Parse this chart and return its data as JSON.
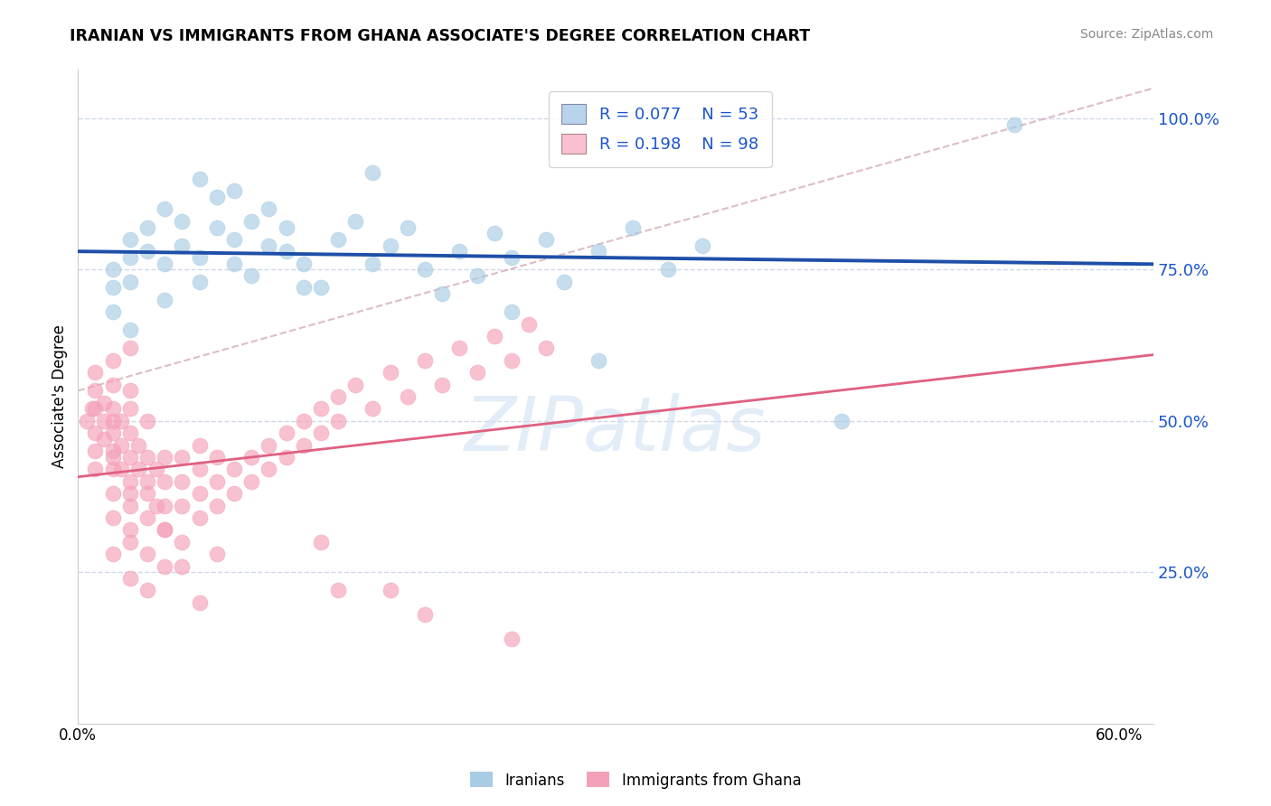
{
  "title": "IRANIAN VS IMMIGRANTS FROM GHANA ASSOCIATE'S DEGREE CORRELATION CHART",
  "source": "Source: ZipAtlas.com",
  "ylabel": "Associate's Degree",
  "xlim": [
    0.0,
    0.62
  ],
  "ylim": [
    0.0,
    1.08
  ],
  "yticks": [
    0.25,
    0.5,
    0.75,
    1.0
  ],
  "ytick_labels": [
    "25.0%",
    "50.0%",
    "75.0%",
    "100.0%"
  ],
  "xtick_labels": [
    "0.0%",
    "",
    "",
    "",
    "",
    "",
    "60.0%"
  ],
  "iranians_R": 0.077,
  "iranians_N": 53,
  "ghana_R": 0.198,
  "ghana_N": 98,
  "blue_color": "#a8cce4",
  "pink_color": "#f4a0b8",
  "blue_line_color": "#1e4fa8",
  "pink_line_color": "#e06080",
  "ref_line_color": "#c8c8c8",
  "legend_text_color": "#1a55cc",
  "axis_label_color": "#1a55cc",
  "watermark": "ZIPatlas",
  "watermark_color": "#c8ddf0",
  "iranians_x": [
    0.02,
    0.02,
    0.02,
    0.03,
    0.03,
    0.03,
    0.03,
    0.04,
    0.04,
    0.05,
    0.05,
    0.05,
    0.06,
    0.06,
    0.07,
    0.07,
    0.08,
    0.08,
    0.09,
    0.09,
    0.1,
    0.1,
    0.11,
    0.11,
    0.12,
    0.12,
    0.13,
    0.14,
    0.15,
    0.16,
    0.17,
    0.18,
    0.19,
    0.2,
    0.21,
    0.22,
    0.23,
    0.24,
    0.25,
    0.27,
    0.28,
    0.3,
    0.32,
    0.34,
    0.36,
    0.07,
    0.09,
    0.13,
    0.17,
    0.25,
    0.44,
    0.54,
    0.3
  ],
  "iranians_y": [
    0.72,
    0.75,
    0.68,
    0.8,
    0.77,
    0.73,
    0.65,
    0.82,
    0.78,
    0.85,
    0.76,
    0.7,
    0.79,
    0.83,
    0.77,
    0.73,
    0.82,
    0.87,
    0.8,
    0.76,
    0.83,
    0.74,
    0.79,
    0.85,
    0.78,
    0.82,
    0.76,
    0.72,
    0.8,
    0.83,
    0.76,
    0.79,
    0.82,
    0.75,
    0.71,
    0.78,
    0.74,
    0.81,
    0.77,
    0.8,
    0.73,
    0.78,
    0.82,
    0.75,
    0.79,
    0.9,
    0.88,
    0.72,
    0.91,
    0.68,
    0.5,
    0.99,
    0.6
  ],
  "ghana_x": [
    0.005,
    0.008,
    0.01,
    0.01,
    0.01,
    0.01,
    0.01,
    0.01,
    0.015,
    0.015,
    0.015,
    0.02,
    0.02,
    0.02,
    0.02,
    0.02,
    0.02,
    0.02,
    0.02,
    0.025,
    0.025,
    0.025,
    0.03,
    0.03,
    0.03,
    0.03,
    0.03,
    0.03,
    0.03,
    0.035,
    0.035,
    0.04,
    0.04,
    0.04,
    0.04,
    0.04,
    0.045,
    0.045,
    0.05,
    0.05,
    0.05,
    0.05,
    0.06,
    0.06,
    0.06,
    0.07,
    0.07,
    0.07,
    0.08,
    0.08,
    0.08,
    0.09,
    0.09,
    0.1,
    0.1,
    0.11,
    0.11,
    0.12,
    0.12,
    0.13,
    0.13,
    0.14,
    0.14,
    0.15,
    0.15,
    0.16,
    0.17,
    0.18,
    0.19,
    0.2,
    0.21,
    0.22,
    0.23,
    0.24,
    0.25,
    0.26,
    0.27,
    0.03,
    0.04,
    0.05,
    0.06,
    0.07,
    0.08,
    0.02,
    0.02,
    0.03,
    0.03,
    0.04,
    0.05,
    0.06,
    0.07,
    0.15,
    0.2,
    0.25,
    0.02,
    0.03,
    0.14,
    0.18
  ],
  "ghana_y": [
    0.5,
    0.52,
    0.48,
    0.52,
    0.55,
    0.45,
    0.42,
    0.58,
    0.5,
    0.47,
    0.53,
    0.5,
    0.48,
    0.45,
    0.52,
    0.56,
    0.42,
    0.38,
    0.44,
    0.46,
    0.5,
    0.42,
    0.48,
    0.44,
    0.4,
    0.52,
    0.38,
    0.55,
    0.36,
    0.42,
    0.46,
    0.4,
    0.44,
    0.38,
    0.5,
    0.34,
    0.42,
    0.36,
    0.4,
    0.44,
    0.36,
    0.32,
    0.4,
    0.44,
    0.36,
    0.42,
    0.38,
    0.46,
    0.4,
    0.44,
    0.36,
    0.42,
    0.38,
    0.44,
    0.4,
    0.46,
    0.42,
    0.48,
    0.44,
    0.5,
    0.46,
    0.52,
    0.48,
    0.54,
    0.5,
    0.56,
    0.52,
    0.58,
    0.54,
    0.6,
    0.56,
    0.62,
    0.58,
    0.64,
    0.6,
    0.66,
    0.62,
    0.3,
    0.28,
    0.32,
    0.26,
    0.34,
    0.28,
    0.34,
    0.28,
    0.24,
    0.32,
    0.22,
    0.26,
    0.3,
    0.2,
    0.22,
    0.18,
    0.14,
    0.6,
    0.62,
    0.3,
    0.22
  ]
}
